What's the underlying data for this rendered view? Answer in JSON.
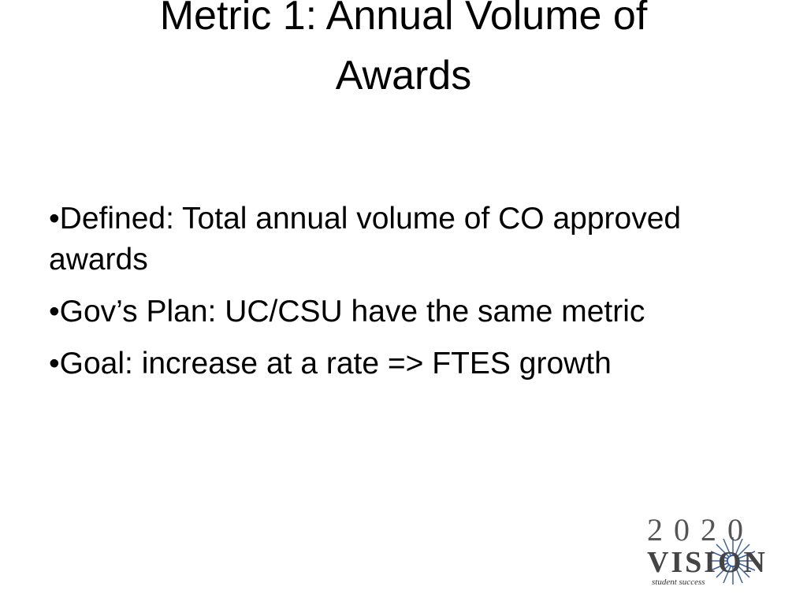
{
  "title": "Metric 1: Annual Volume of Awards",
  "bullets": [
    "•Defined: Total annual volume of CO approved awards",
    "•Gov’s Plan: UC/CSU have the same metric",
    "•Goal: increase at a rate => FTES growth"
  ],
  "logo": {
    "year": "2020",
    "word": "VISION",
    "tagline": "student success"
  }
}
